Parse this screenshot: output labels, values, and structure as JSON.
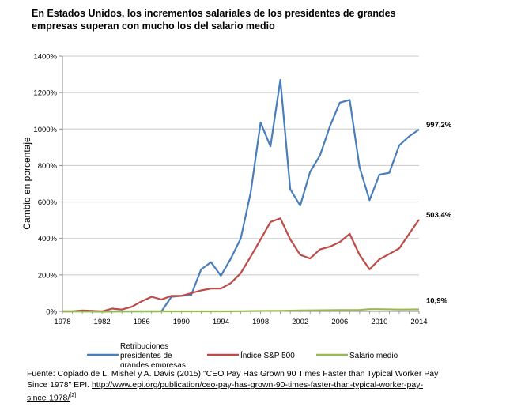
{
  "title": "En Estados Unidos, los incrementos salariales de los presidentes de grandes empresas superan con mucho los del salario medio",
  "source": {
    "line1": "Fuente: Copiado de L. Mishel y A. Davis (2015) \"CEO Pay Has Grown 90 Times Faster than Typical Worker Pay",
    "line2_text": "Since 1978\" EPI. ",
    "link_part1": "http://www.epi.org/publication/ceo-pay-has-grown-90-times-faster-than-typical-worker-pay-",
    "link_part2": "since-1978/",
    "footnote_mark": "[2]"
  },
  "chart_data": {
    "type": "line",
    "ylabel": "Cambio en porcentaje",
    "xlabel": "",
    "ylim": [
      0,
      1400
    ],
    "xlim": [
      1978,
      2014
    ],
    "y_ticks": [
      "0%",
      "200%",
      "400%",
      "600%",
      "800%",
      "1000%",
      "1200%",
      "1400%"
    ],
    "x_ticks": [
      "1978",
      "1982",
      "1986",
      "1990",
      "1994",
      "1998",
      "2002",
      "2006",
      "2010",
      "2014"
    ],
    "grid": true,
    "legend": "bottom",
    "series": [
      {
        "name": "Retribuciones presidentes de grandes empresas",
        "color": "#4a7ebb",
        "end_label": "997,2%",
        "x": [
          1978,
          1979,
          1980,
          1981,
          1982,
          1983,
          1984,
          1985,
          1986,
          1987,
          1988,
          1989,
          1990,
          1991,
          1992,
          1993,
          1994,
          1995,
          1996,
          1997,
          1998,
          1999,
          2000,
          2001,
          2002,
          2003,
          2004,
          2005,
          2006,
          2007,
          2008,
          2009,
          2010,
          2011,
          2012,
          2013,
          2014
        ],
        "values": [
          0,
          0,
          0,
          0,
          0,
          0,
          0,
          0,
          0,
          0,
          0,
          80,
          85,
          90,
          230,
          270,
          195,
          290,
          400,
          650,
          1035,
          905,
          1270,
          670,
          580,
          765,
          855,
          1015,
          1145,
          1160,
          790,
          610,
          750,
          760,
          910,
          960,
          997.2
        ]
      },
      {
        "name": "Índice S&P 500",
        "color": "#be4b48",
        "end_label": "503,4%",
        "x": [
          1978,
          1979,
          1980,
          1981,
          1982,
          1983,
          1984,
          1985,
          1986,
          1987,
          1988,
          1989,
          1990,
          1991,
          1992,
          1993,
          1994,
          1995,
          1996,
          1997,
          1998,
          1999,
          2000,
          2001,
          2002,
          2003,
          2004,
          2005,
          2006,
          2007,
          2008,
          2009,
          2010,
          2011,
          2012,
          2013,
          2014
        ],
        "values": [
          0,
          0,
          5,
          3,
          0,
          15,
          10,
          25,
          55,
          80,
          65,
          85,
          85,
          100,
          115,
          125,
          125,
          155,
          210,
          300,
          395,
          490,
          510,
          395,
          310,
          290,
          340,
          355,
          380,
          425,
          310,
          230,
          285,
          315,
          345,
          425,
          503.4
        ]
      },
      {
        "name": "Salario medio",
        "color": "#98b954",
        "end_label": "10,9%",
        "x": [
          1978,
          1980,
          1982,
          1984,
          1986,
          1988,
          1990,
          1992,
          1994,
          1996,
          1998,
          2000,
          2002,
          2004,
          2006,
          2008,
          2009,
          2010,
          2012,
          2014
        ],
        "values": [
          0,
          -1,
          -2,
          -1,
          0,
          0,
          0,
          0,
          0,
          1,
          2,
          3,
          5,
          6,
          7,
          8,
          12,
          12,
          10,
          10.9
        ]
      }
    ]
  }
}
